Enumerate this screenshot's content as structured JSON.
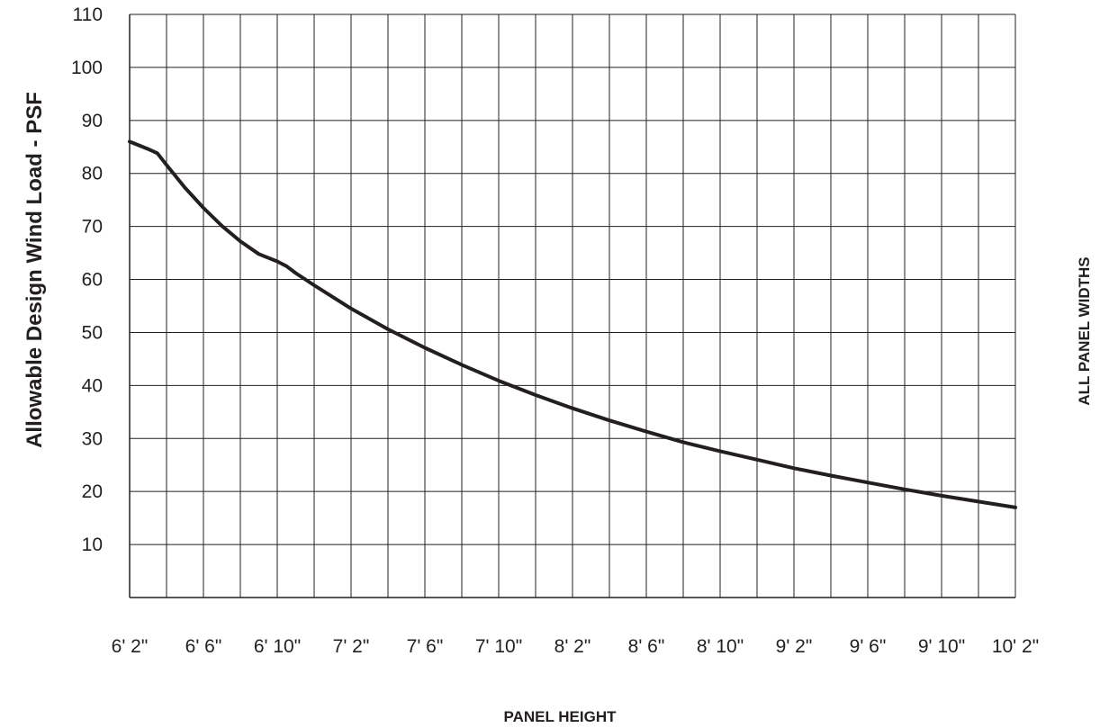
{
  "chart_data": {
    "type": "line",
    "ylabel": "Allowable Design Wind Load - PSF",
    "xlabel": "PANEL HEIGHT",
    "side_label": "ALL PANEL WIDTHS",
    "xunit": "inches",
    "x_grid_step": 2,
    "x_ticks": [
      {
        "label": "6' 2\"",
        "value": 74
      },
      {
        "label": "6' 6\"",
        "value": 78
      },
      {
        "label": "6' 10\"",
        "value": 82
      },
      {
        "label": "7' 2\"",
        "value": 86
      },
      {
        "label": "7' 6\"",
        "value": 90
      },
      {
        "label": "7' 10\"",
        "value": 94
      },
      {
        "label": "8' 2\"",
        "value": 98
      },
      {
        "label": "8' 6\"",
        "value": 102
      },
      {
        "label": "8' 10\"",
        "value": 106
      },
      {
        "label": "9' 2\"",
        "value": 110
      },
      {
        "label": "9' 6\"",
        "value": 114
      },
      {
        "label": "9' 10\"",
        "value": 118
      },
      {
        "label": "10' 2\"",
        "value": 122
      }
    ],
    "xlim": [
      74,
      122
    ],
    "y_ticks": [
      10,
      20,
      30,
      40,
      50,
      60,
      70,
      80,
      90,
      100,
      110
    ],
    "ylim": [
      0,
      110
    ],
    "grid": true,
    "series": [
      {
        "color": "#231f20",
        "points": [
          [
            74,
            86
          ],
          [
            74.5,
            85.3
          ],
          [
            75,
            84.6
          ],
          [
            75.5,
            83.8
          ],
          [
            76,
            81.6
          ],
          [
            77,
            77.3
          ],
          [
            78,
            73.5
          ],
          [
            79,
            70.1
          ],
          [
            80,
            67.2
          ],
          [
            81,
            64.8
          ],
          [
            82,
            63.4
          ],
          [
            82.5,
            62.5
          ],
          [
            83,
            61.2
          ],
          [
            84,
            58.9
          ],
          [
            86,
            54.5
          ],
          [
            88,
            50.6
          ],
          [
            90,
            47.1
          ],
          [
            92,
            43.9
          ],
          [
            94,
            40.9
          ],
          [
            96,
            38.2
          ],
          [
            98,
            35.7
          ],
          [
            100,
            33.4
          ],
          [
            102,
            31.3
          ],
          [
            104,
            29.3
          ],
          [
            106,
            27.6
          ],
          [
            108,
            26.0
          ],
          [
            110,
            24.4
          ],
          [
            112,
            23.0
          ],
          [
            114,
            21.7
          ],
          [
            116,
            20.4
          ],
          [
            118,
            19.2
          ],
          [
            120,
            18.1
          ],
          [
            122,
            17.0
          ]
        ]
      }
    ]
  }
}
